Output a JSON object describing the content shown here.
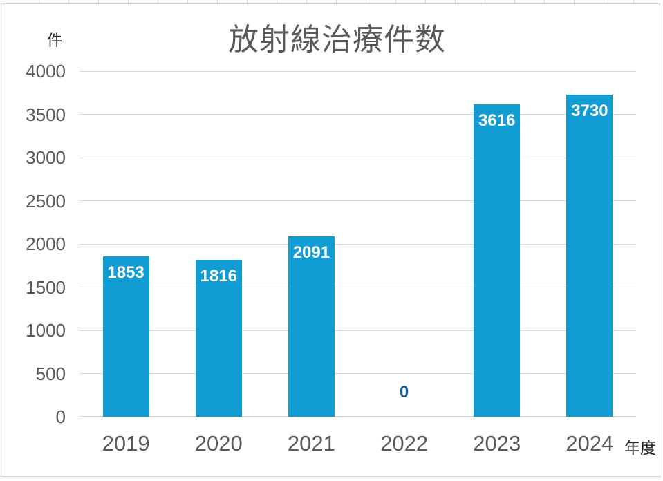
{
  "chart_data": {
    "type": "bar",
    "title": "放射線治療件数",
    "unit_label": "件",
    "x_axis_label": "年度",
    "categories": [
      "2019",
      "2020",
      "2021",
      "2022",
      "2023",
      "2024"
    ],
    "values": [
      1853,
      1816,
      2091,
      0,
      3616,
      3730
    ],
    "ylim": [
      0,
      4000
    ],
    "yticks": [
      0,
      500,
      1000,
      1500,
      2000,
      2500,
      3000,
      3500,
      4000
    ],
    "grid": true,
    "legend": "none",
    "colors": {
      "bar": "#129cd4",
      "bar_value_label": "#ffffff",
      "zero_value_label": "#1f5c99",
      "gridline": "#d9d9d9",
      "tick_text": "#595959",
      "title_text": "#595959",
      "axis_title_text": "#1f1f1f",
      "chart_border": "#d4d4d4"
    }
  }
}
